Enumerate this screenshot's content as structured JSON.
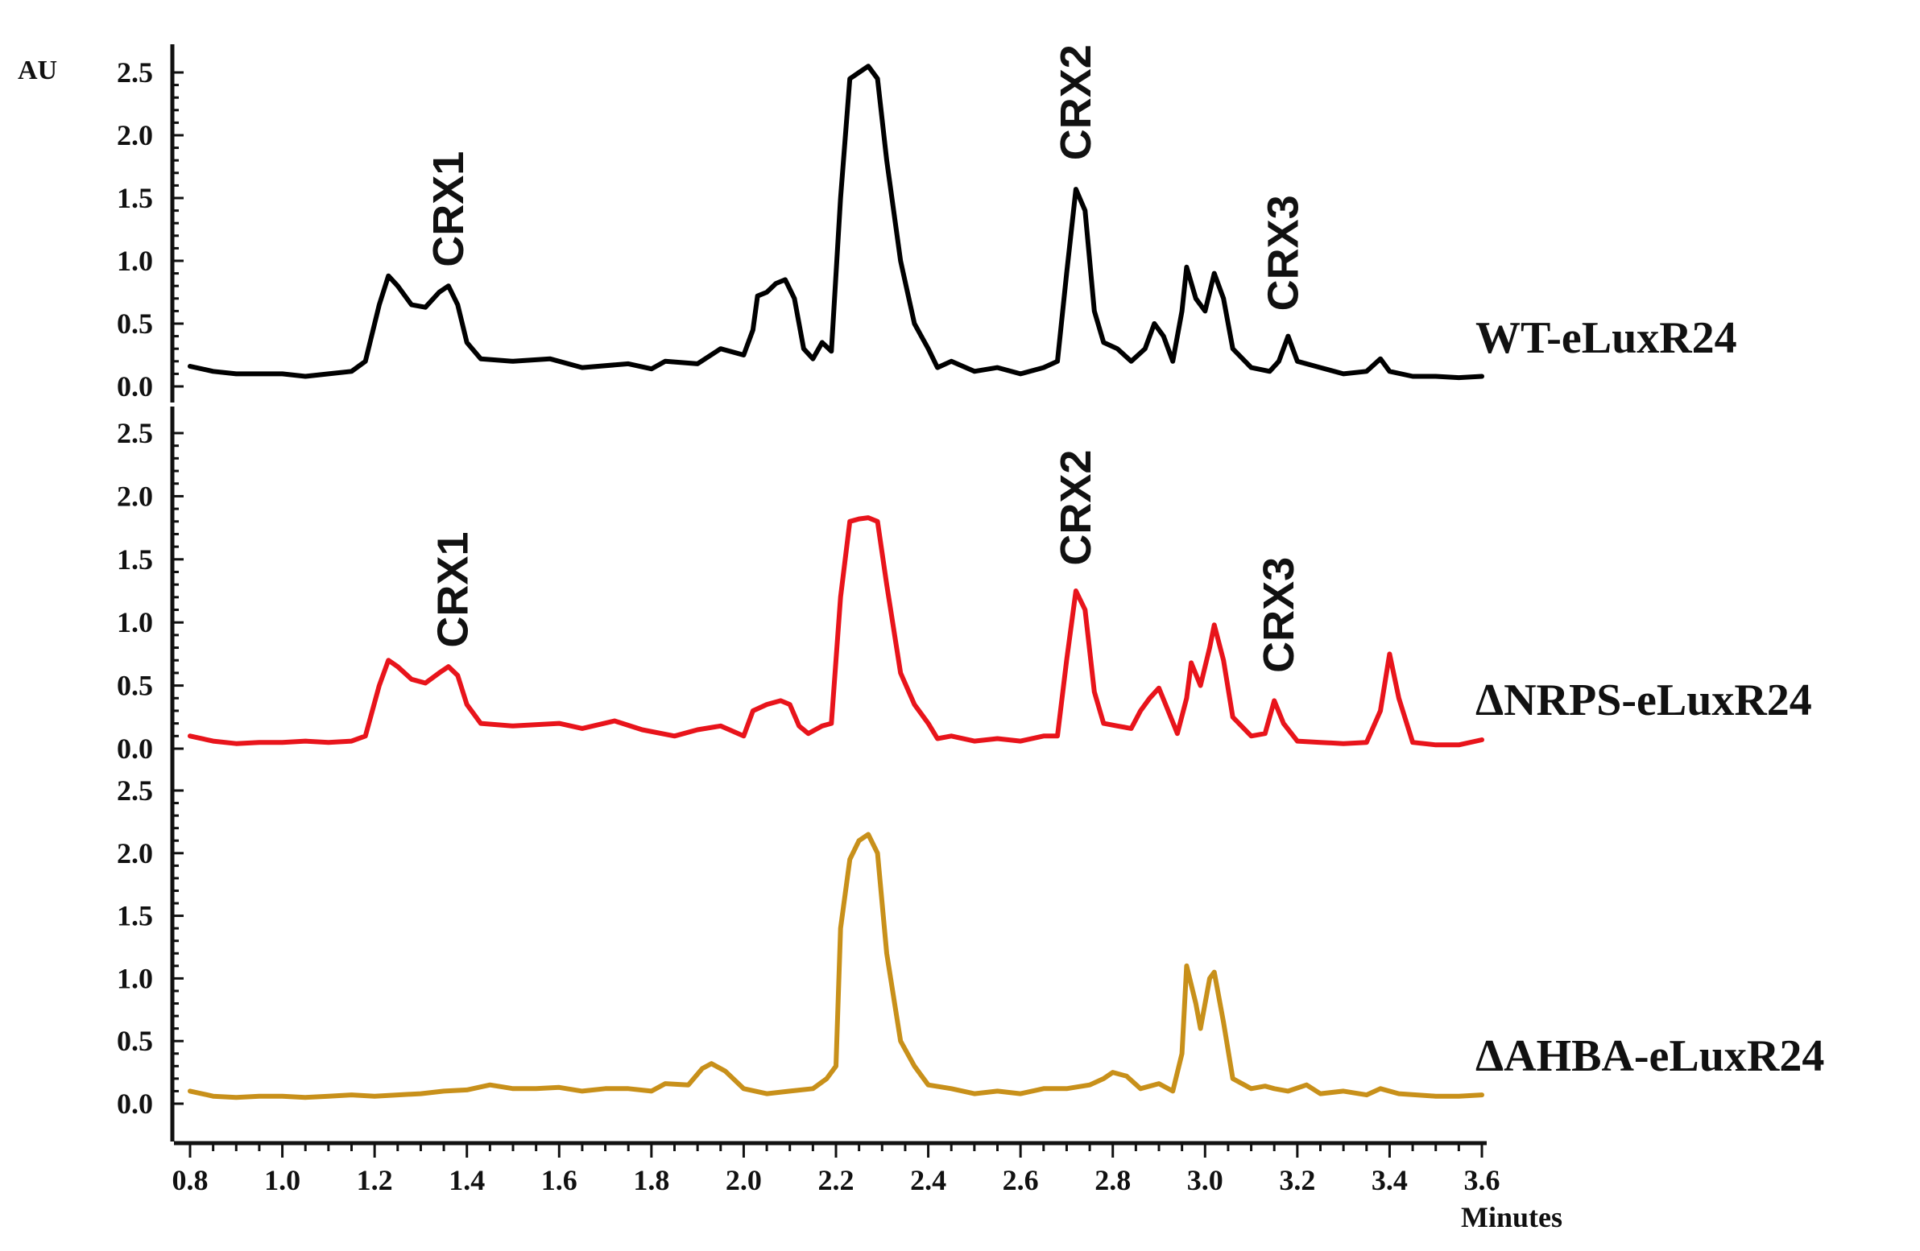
{
  "chart_data": {
    "type": "line",
    "ylabel": "AU",
    "xlabel": "Minutes",
    "xlim": [
      0.8,
      3.6
    ],
    "ylim": [
      0.0,
      2.5
    ],
    "x_ticks": [
      "0.8",
      "1.0",
      "1.2",
      "1.4",
      "1.6",
      "1.8",
      "2.0",
      "2.2",
      "2.4",
      "2.6",
      "2.8",
      "3.0",
      "3.2",
      "3.4",
      "3.6"
    ],
    "y_ticks": [
      "0.0",
      "0.5",
      "1.0",
      "1.5",
      "2.0",
      "2.5"
    ],
    "grid": false,
    "panels": [
      {
        "name": "WT-eLuxR24",
        "color": "#000000",
        "annotations": [
          {
            "text": "CRX1",
            "x": 1.36,
            "y": 0.95
          },
          {
            "text": "CRX2",
            "x": 2.72,
            "y": 1.8
          },
          {
            "text": "CRX3",
            "x": 3.17,
            "y": 0.6
          }
        ],
        "points": [
          [
            0.8,
            0.16
          ],
          [
            0.85,
            0.12
          ],
          [
            0.9,
            0.1
          ],
          [
            0.95,
            0.1
          ],
          [
            1.0,
            0.1
          ],
          [
            1.05,
            0.08
          ],
          [
            1.1,
            0.1
          ],
          [
            1.15,
            0.12
          ],
          [
            1.18,
            0.2
          ],
          [
            1.21,
            0.65
          ],
          [
            1.23,
            0.88
          ],
          [
            1.25,
            0.8
          ],
          [
            1.28,
            0.65
          ],
          [
            1.31,
            0.63
          ],
          [
            1.34,
            0.75
          ],
          [
            1.36,
            0.8
          ],
          [
            1.38,
            0.65
          ],
          [
            1.4,
            0.35
          ],
          [
            1.43,
            0.22
          ],
          [
            1.5,
            0.2
          ],
          [
            1.58,
            0.22
          ],
          [
            1.65,
            0.15
          ],
          [
            1.75,
            0.18
          ],
          [
            1.8,
            0.14
          ],
          [
            1.83,
            0.2
          ],
          [
            1.9,
            0.18
          ],
          [
            1.95,
            0.3
          ],
          [
            2.0,
            0.25
          ],
          [
            2.02,
            0.45
          ],
          [
            2.03,
            0.72
          ],
          [
            2.05,
            0.75
          ],
          [
            2.07,
            0.82
          ],
          [
            2.09,
            0.85
          ],
          [
            2.11,
            0.7
          ],
          [
            2.13,
            0.3
          ],
          [
            2.15,
            0.22
          ],
          [
            2.17,
            0.35
          ],
          [
            2.19,
            0.28
          ],
          [
            2.21,
            1.5
          ],
          [
            2.23,
            2.45
          ],
          [
            2.25,
            2.5
          ],
          [
            2.27,
            2.55
          ],
          [
            2.29,
            2.45
          ],
          [
            2.31,
            1.8
          ],
          [
            2.34,
            1.0
          ],
          [
            2.37,
            0.5
          ],
          [
            2.4,
            0.3
          ],
          [
            2.42,
            0.15
          ],
          [
            2.45,
            0.2
          ],
          [
            2.5,
            0.12
          ],
          [
            2.55,
            0.15
          ],
          [
            2.6,
            0.1
          ],
          [
            2.65,
            0.15
          ],
          [
            2.68,
            0.2
          ],
          [
            2.7,
            0.9
          ],
          [
            2.72,
            1.57
          ],
          [
            2.74,
            1.4
          ],
          [
            2.76,
            0.6
          ],
          [
            2.78,
            0.35
          ],
          [
            2.81,
            0.3
          ],
          [
            2.84,
            0.2
          ],
          [
            2.87,
            0.3
          ],
          [
            2.89,
            0.5
          ],
          [
            2.91,
            0.4
          ],
          [
            2.93,
            0.2
          ],
          [
            2.95,
            0.6
          ],
          [
            2.96,
            0.95
          ],
          [
            2.98,
            0.7
          ],
          [
            3.0,
            0.6
          ],
          [
            3.02,
            0.9
          ],
          [
            3.04,
            0.7
          ],
          [
            3.06,
            0.3
          ],
          [
            3.1,
            0.15
          ],
          [
            3.14,
            0.12
          ],
          [
            3.16,
            0.2
          ],
          [
            3.18,
            0.4
          ],
          [
            3.2,
            0.2
          ],
          [
            3.25,
            0.15
          ],
          [
            3.3,
            0.1
          ],
          [
            3.35,
            0.12
          ],
          [
            3.38,
            0.22
          ],
          [
            3.4,
            0.12
          ],
          [
            3.45,
            0.08
          ],
          [
            3.5,
            0.08
          ],
          [
            3.55,
            0.07
          ],
          [
            3.6,
            0.08
          ]
        ]
      },
      {
        "name": "ΔNRPS-eLuxR24",
        "color": "#e8141b",
        "annotations": [
          {
            "text": "CRX1",
            "x": 1.37,
            "y": 0.8
          },
          {
            "text": "CRX2",
            "x": 2.72,
            "y": 1.45
          },
          {
            "text": "CRX3",
            "x": 3.16,
            "y": 0.6
          }
        ],
        "points": [
          [
            0.8,
            0.1
          ],
          [
            0.85,
            0.06
          ],
          [
            0.9,
            0.04
          ],
          [
            0.95,
            0.05
          ],
          [
            1.0,
            0.05
          ],
          [
            1.05,
            0.06
          ],
          [
            1.1,
            0.05
          ],
          [
            1.15,
            0.06
          ],
          [
            1.18,
            0.1
          ],
          [
            1.21,
            0.5
          ],
          [
            1.23,
            0.7
          ],
          [
            1.25,
            0.65
          ],
          [
            1.28,
            0.55
          ],
          [
            1.31,
            0.52
          ],
          [
            1.34,
            0.6
          ],
          [
            1.36,
            0.65
          ],
          [
            1.38,
            0.58
          ],
          [
            1.4,
            0.35
          ],
          [
            1.43,
            0.2
          ],
          [
            1.5,
            0.18
          ],
          [
            1.6,
            0.2
          ],
          [
            1.65,
            0.16
          ],
          [
            1.72,
            0.22
          ],
          [
            1.78,
            0.15
          ],
          [
            1.85,
            0.1
          ],
          [
            1.9,
            0.15
          ],
          [
            1.95,
            0.18
          ],
          [
            2.0,
            0.1
          ],
          [
            2.02,
            0.3
          ],
          [
            2.05,
            0.35
          ],
          [
            2.08,
            0.38
          ],
          [
            2.1,
            0.35
          ],
          [
            2.12,
            0.18
          ],
          [
            2.14,
            0.12
          ],
          [
            2.17,
            0.18
          ],
          [
            2.19,
            0.2
          ],
          [
            2.21,
            1.2
          ],
          [
            2.23,
            1.8
          ],
          [
            2.25,
            1.82
          ],
          [
            2.27,
            1.83
          ],
          [
            2.29,
            1.8
          ],
          [
            2.31,
            1.3
          ],
          [
            2.34,
            0.6
          ],
          [
            2.37,
            0.35
          ],
          [
            2.4,
            0.2
          ],
          [
            2.42,
            0.08
          ],
          [
            2.45,
            0.1
          ],
          [
            2.5,
            0.06
          ],
          [
            2.55,
            0.08
          ],
          [
            2.6,
            0.06
          ],
          [
            2.65,
            0.1
          ],
          [
            2.68,
            0.1
          ],
          [
            2.7,
            0.7
          ],
          [
            2.72,
            1.25
          ],
          [
            2.74,
            1.1
          ],
          [
            2.76,
            0.45
          ],
          [
            2.78,
            0.2
          ],
          [
            2.81,
            0.18
          ],
          [
            2.84,
            0.16
          ],
          [
            2.86,
            0.3
          ],
          [
            2.88,
            0.4
          ],
          [
            2.9,
            0.48
          ],
          [
            2.92,
            0.3
          ],
          [
            2.94,
            0.12
          ],
          [
            2.96,
            0.4
          ],
          [
            2.97,
            0.68
          ],
          [
            2.99,
            0.5
          ],
          [
            3.01,
            0.8
          ],
          [
            3.02,
            0.98
          ],
          [
            3.04,
            0.7
          ],
          [
            3.06,
            0.25
          ],
          [
            3.1,
            0.1
          ],
          [
            3.13,
            0.12
          ],
          [
            3.15,
            0.38
          ],
          [
            3.17,
            0.2
          ],
          [
            3.2,
            0.06
          ],
          [
            3.25,
            0.05
          ],
          [
            3.3,
            0.04
          ],
          [
            3.35,
            0.05
          ],
          [
            3.38,
            0.3
          ],
          [
            3.4,
            0.75
          ],
          [
            3.42,
            0.4
          ],
          [
            3.45,
            0.05
          ],
          [
            3.5,
            0.03
          ],
          [
            3.55,
            0.03
          ],
          [
            3.6,
            0.07
          ]
        ]
      },
      {
        "name": "ΔAHBA-eLuxR24",
        "color": "#c8901a",
        "annotations": [],
        "points": [
          [
            0.8,
            0.1
          ],
          [
            0.85,
            0.06
          ],
          [
            0.9,
            0.05
          ],
          [
            0.95,
            0.06
          ],
          [
            1.0,
            0.06
          ],
          [
            1.05,
            0.05
          ],
          [
            1.1,
            0.06
          ],
          [
            1.15,
            0.07
          ],
          [
            1.2,
            0.06
          ],
          [
            1.25,
            0.07
          ],
          [
            1.3,
            0.08
          ],
          [
            1.35,
            0.1
          ],
          [
            1.4,
            0.11
          ],
          [
            1.45,
            0.15
          ],
          [
            1.5,
            0.12
          ],
          [
            1.55,
            0.12
          ],
          [
            1.6,
            0.13
          ],
          [
            1.65,
            0.1
          ],
          [
            1.7,
            0.12
          ],
          [
            1.75,
            0.12
          ],
          [
            1.8,
            0.1
          ],
          [
            1.83,
            0.16
          ],
          [
            1.88,
            0.15
          ],
          [
            1.91,
            0.28
          ],
          [
            1.93,
            0.32
          ],
          [
            1.96,
            0.26
          ],
          [
            2.0,
            0.12
          ],
          [
            2.05,
            0.08
          ],
          [
            2.1,
            0.1
          ],
          [
            2.15,
            0.12
          ],
          [
            2.18,
            0.2
          ],
          [
            2.2,
            0.3
          ],
          [
            2.21,
            1.4
          ],
          [
            2.23,
            1.95
          ],
          [
            2.25,
            2.1
          ],
          [
            2.27,
            2.15
          ],
          [
            2.29,
            2.0
          ],
          [
            2.31,
            1.2
          ],
          [
            2.34,
            0.5
          ],
          [
            2.37,
            0.3
          ],
          [
            2.4,
            0.15
          ],
          [
            2.45,
            0.12
          ],
          [
            2.5,
            0.08
          ],
          [
            2.55,
            0.1
          ],
          [
            2.6,
            0.08
          ],
          [
            2.65,
            0.12
          ],
          [
            2.7,
            0.12
          ],
          [
            2.75,
            0.15
          ],
          [
            2.78,
            0.2
          ],
          [
            2.8,
            0.25
          ],
          [
            2.83,
            0.22
          ],
          [
            2.86,
            0.12
          ],
          [
            2.9,
            0.16
          ],
          [
            2.93,
            0.1
          ],
          [
            2.95,
            0.4
          ],
          [
            2.96,
            1.1
          ],
          [
            2.98,
            0.8
          ],
          [
            2.99,
            0.6
          ],
          [
            3.01,
            1.0
          ],
          [
            3.02,
            1.05
          ],
          [
            3.04,
            0.65
          ],
          [
            3.06,
            0.2
          ],
          [
            3.1,
            0.12
          ],
          [
            3.13,
            0.14
          ],
          [
            3.15,
            0.12
          ],
          [
            3.18,
            0.1
          ],
          [
            3.22,
            0.15
          ],
          [
            3.25,
            0.08
          ],
          [
            3.3,
            0.1
          ],
          [
            3.35,
            0.07
          ],
          [
            3.38,
            0.12
          ],
          [
            3.42,
            0.08
          ],
          [
            3.5,
            0.06
          ],
          [
            3.55,
            0.06
          ],
          [
            3.6,
            0.07
          ]
        ]
      }
    ]
  }
}
